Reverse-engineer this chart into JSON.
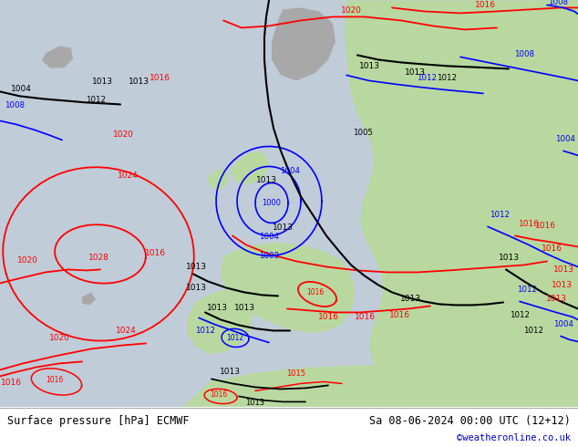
{
  "title_left": "Surface pressure [hPa] ECMWF",
  "title_right": "Sa 08-06-2024 00:00 UTC (12+12)",
  "watermark": "©weatheronline.co.uk",
  "footer_bg": "#ffffff",
  "watermark_color": "#0000cc",
  "title_color": "#000000",
  "ocean_color": "#b8c8d8",
  "land_green_color": "#b8d8a0",
  "land_gray_color": "#a0a0a0",
  "footer_line_color": "#999999"
}
